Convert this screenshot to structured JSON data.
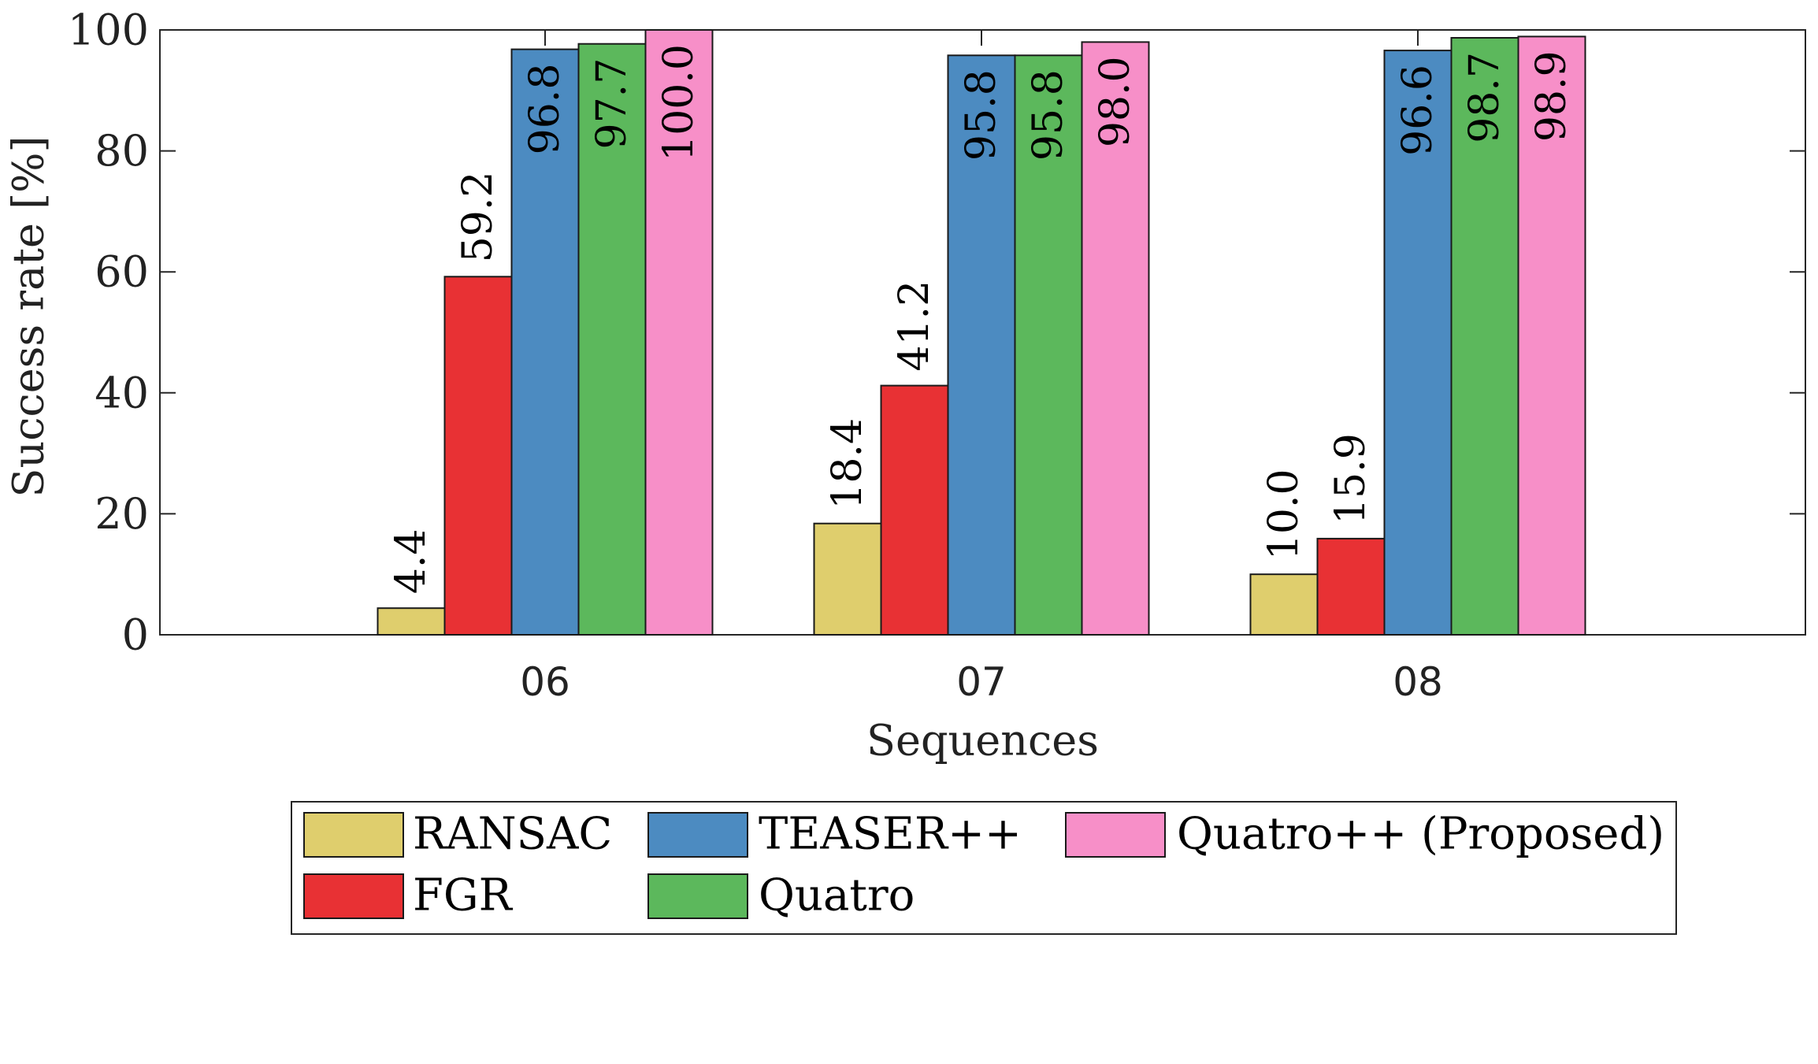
{
  "chart_data": {
    "type": "bar",
    "title": "",
    "xlabel": "Sequences",
    "ylabel": "Success rate [%]",
    "categories": [
      "06",
      "07",
      "08"
    ],
    "ylim": [
      0,
      100
    ],
    "yticks": [
      0,
      20,
      40,
      60,
      80,
      100
    ],
    "grid": false,
    "legend_position": "bottom",
    "series": [
      {
        "name": "RANSAC",
        "color": "#dfce6d",
        "values": [
          4.4,
          18.4,
          10.0
        ],
        "labels": [
          "4.4",
          "18.4",
          "10.0"
        ]
      },
      {
        "name": "FGR",
        "color": "#e83134",
        "values": [
          59.2,
          41.2,
          15.9
        ],
        "labels": [
          "59.2",
          "41.2",
          "15.9"
        ]
      },
      {
        "name": "TEASER++",
        "color": "#4c8bc1",
        "values": [
          96.8,
          95.8,
          96.6
        ],
        "labels": [
          "96.8",
          "95.8",
          "96.6"
        ]
      },
      {
        "name": "Quatro",
        "color": "#5cb85c",
        "values": [
          97.7,
          95.8,
          98.7
        ],
        "labels": [
          "97.7",
          "95.8",
          "98.7"
        ]
      },
      {
        "name": "Quatro++ (Proposed)",
        "color": "#f78fc8",
        "values": [
          100.0,
          98.0,
          98.9
        ],
        "labels": [
          "100.0",
          "98.0",
          "98.9"
        ]
      }
    ]
  }
}
